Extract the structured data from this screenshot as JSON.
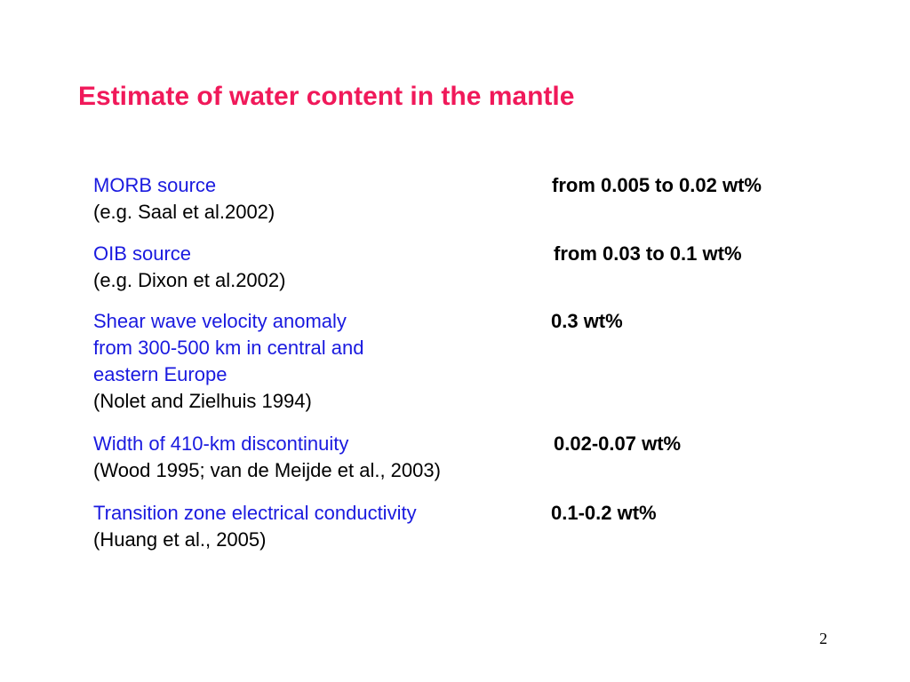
{
  "slide": {
    "title": "Estimate of water content in the mantle",
    "page_number": "2",
    "colors": {
      "title": "#f0195a",
      "label": "#1a1adf",
      "text": "#000000"
    },
    "entries": [
      {
        "label_lines": [
          "MORB source"
        ],
        "ref": "(e.g. Saal et al.2002)",
        "value": "from 0.005 to 0.02 wt%"
      },
      {
        "label_lines": [
          "OIB source"
        ],
        "ref": "(e.g. Dixon et al.2002)",
        "value": "from 0.03 to 0.1 wt%"
      },
      {
        "label_lines": [
          "Shear wave velocity anomaly",
          "from 300-500 km in central and",
          "eastern Europe"
        ],
        "ref": "(Nolet and Zielhuis 1994)",
        "value": "0.3 wt%"
      },
      {
        "label_lines": [
          "Width of 410-km discontinuity"
        ],
        "ref": "(Wood 1995; van de Meijde et al., 2003)",
        "value": "0.02-0.07 wt%"
      },
      {
        "label_lines": [
          "Transition zone electrical conductivity"
        ],
        "ref": "(Huang et al., 2005)",
        "value": "0.1-0.2 wt%"
      }
    ]
  }
}
